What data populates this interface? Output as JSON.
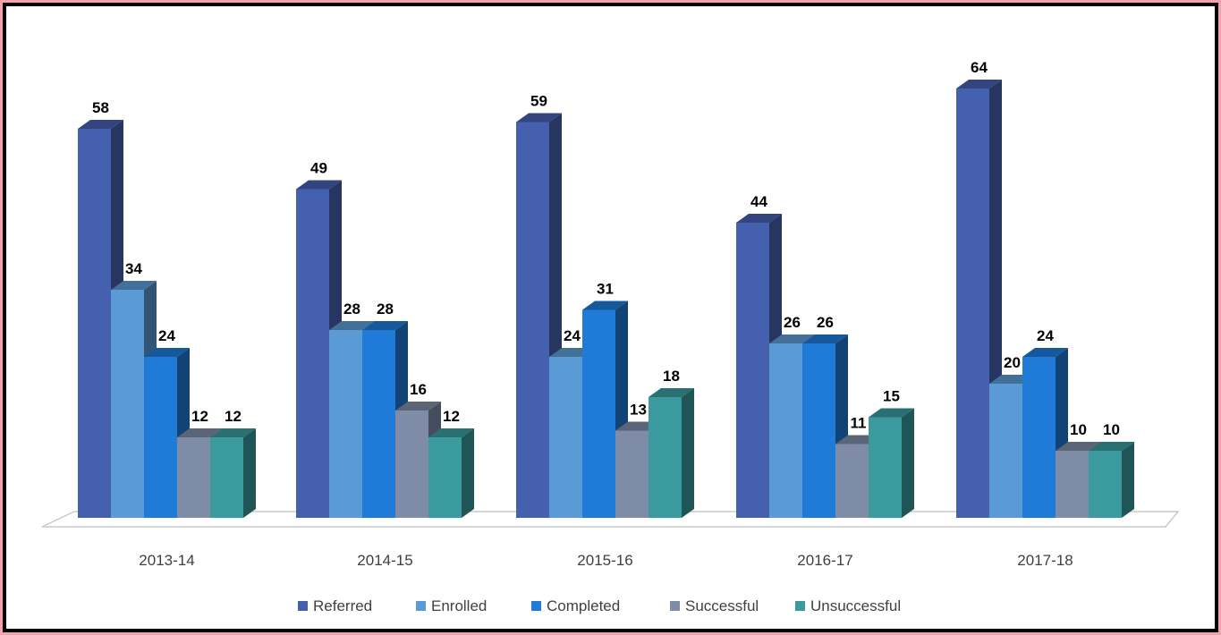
{
  "chart_data": {
    "type": "bar",
    "categories": [
      "2013-14",
      "2014-15",
      "2015-16",
      "2016-17",
      "2017-18"
    ],
    "series": [
      {
        "name": "Referred",
        "color": "#4660b0",
        "values": [
          58,
          49,
          59,
          44,
          64
        ]
      },
      {
        "name": "Enrolled",
        "color": "#5b9bd5",
        "values": [
          34,
          28,
          24,
          26,
          20
        ]
      },
      {
        "name": "Completed",
        "color": "#1f7ad8",
        "values": [
          24,
          28,
          31,
          26,
          24
        ]
      },
      {
        "name": "Successful",
        "color": "#7f8ca7",
        "values": [
          12,
          16,
          13,
          11,
          10
        ]
      },
      {
        "name": "Unsuccessful",
        "color": "#3a9a9e",
        "values": [
          12,
          12,
          18,
          15,
          10
        ]
      }
    ],
    "ylim": [
      0,
      70
    ],
    "grid": false,
    "legend": "bottom",
    "data_labels": true
  }
}
